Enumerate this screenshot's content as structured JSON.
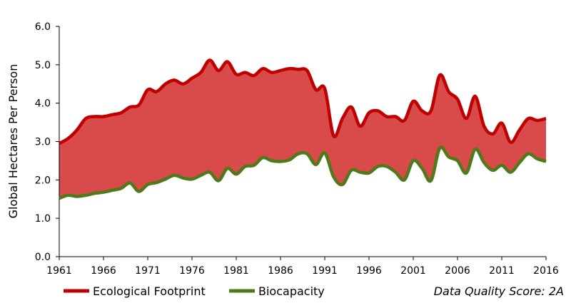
{
  "chart_data": {
    "type": "area",
    "ylabel": "Global Hectares Per Person",
    "xlabel": "",
    "ylim": [
      0,
      6
    ],
    "xlim": [
      1961,
      2016
    ],
    "yticks": [
      "0.0",
      "1.0",
      "2.0",
      "3.0",
      "4.0",
      "5.0",
      "6.0"
    ],
    "xticks": [
      "1961",
      "1966",
      "1971",
      "1976",
      "1981",
      "1986",
      "1991",
      "1996",
      "2001",
      "2006",
      "2011",
      "2016"
    ],
    "grid": false,
    "legend_placement": "bottom",
    "note": "Data Quality Score: 2A",
    "x": [
      1961,
      1962,
      1963,
      1964,
      1965,
      1966,
      1967,
      1968,
      1969,
      1970,
      1971,
      1972,
      1973,
      1974,
      1975,
      1976,
      1977,
      1978,
      1979,
      1980,
      1981,
      1982,
      1983,
      1984,
      1985,
      1986,
      1987,
      1988,
      1989,
      1990,
      1991,
      1992,
      1993,
      1994,
      1995,
      1996,
      1997,
      1998,
      1999,
      2000,
      2001,
      2002,
      2003,
      2004,
      2005,
      2006,
      2007,
      2008,
      2009,
      2010,
      2011,
      2012,
      2013,
      2014,
      2015,
      2016
    ],
    "series": [
      {
        "name": "Ecological Footprint",
        "color": "#c00000",
        "fill": "#d94a4a",
        "values": [
          2.95,
          3.08,
          3.3,
          3.6,
          3.65,
          3.65,
          3.7,
          3.75,
          3.9,
          3.95,
          4.35,
          4.3,
          4.5,
          4.6,
          4.5,
          4.65,
          4.8,
          5.12,
          4.85,
          5.08,
          4.75,
          4.8,
          4.72,
          4.9,
          4.8,
          4.85,
          4.9,
          4.88,
          4.85,
          4.35,
          4.38,
          3.15,
          3.6,
          3.9,
          3.4,
          3.75,
          3.8,
          3.65,
          3.65,
          3.55,
          4.05,
          3.8,
          3.8,
          4.73,
          4.3,
          4.1,
          3.6,
          4.18,
          3.4,
          3.2,
          3.48,
          2.98,
          3.3,
          3.6,
          3.55,
          3.6
        ]
      },
      {
        "name": "Biocapacity",
        "color": "#4f7a1a",
        "values": [
          1.52,
          1.6,
          1.57,
          1.6,
          1.65,
          1.68,
          1.73,
          1.78,
          1.92,
          1.7,
          1.88,
          1.93,
          2.02,
          2.12,
          2.05,
          2.02,
          2.12,
          2.2,
          1.98,
          2.3,
          2.15,
          2.35,
          2.38,
          2.58,
          2.5,
          2.48,
          2.52,
          2.68,
          2.68,
          2.4,
          2.7,
          2.08,
          1.88,
          2.25,
          2.2,
          2.18,
          2.35,
          2.35,
          2.2,
          2.0,
          2.5,
          2.3,
          1.98,
          2.83,
          2.6,
          2.5,
          2.18,
          2.8,
          2.45,
          2.25,
          2.38,
          2.2,
          2.45,
          2.68,
          2.55,
          2.48
        ]
      }
    ]
  }
}
